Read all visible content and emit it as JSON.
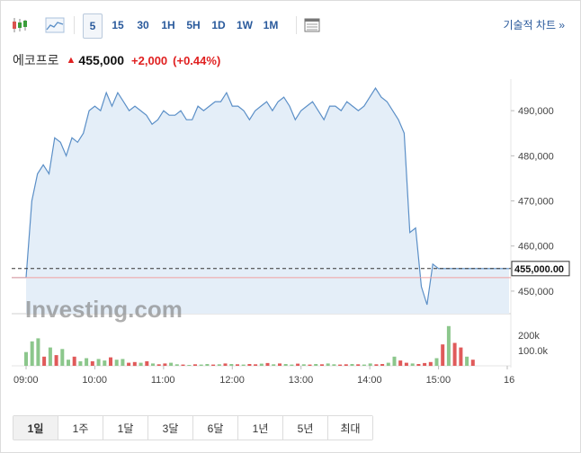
{
  "toolbar": {
    "candle_icon": "candlestick-chart-icon",
    "line_icon": "line-chart-icon",
    "intervals": [
      "5",
      "15",
      "30",
      "1H",
      "5H",
      "1D",
      "1W",
      "1M"
    ],
    "active_interval": "5",
    "table_icon": "table-icon",
    "tech_link": "기술적 차트 »"
  },
  "quote": {
    "name": "에코프로",
    "price": "455,000",
    "change": "+2,000",
    "change_pct": "(+0.44%)"
  },
  "colors": {
    "up": "#e02020",
    "line": "#5b8fc7",
    "area": "#e4eef8",
    "vol_up": "#8cc78c",
    "vol_down": "#e05a5a",
    "link": "#2a5a9c"
  },
  "watermark": "Investing.com",
  "chart_data": {
    "type": "area",
    "x_ticks": [
      "09:00",
      "10:00",
      "11:00",
      "12:00",
      "13:00",
      "14:00",
      "15:00",
      "16"
    ],
    "y_ticks": [
      "490,000",
      "480,000",
      "470,000",
      "460,000",
      "450,000"
    ],
    "current_price_label": "455,000.00",
    "ylim": [
      445000,
      497000
    ],
    "x_start": "09:00",
    "x_end": "16:00",
    "series": [
      {
        "x": [
          "09:00",
          "09:05",
          "09:10",
          "09:15",
          "09:20",
          "09:25",
          "09:30",
          "09:35",
          "09:40",
          "09:45",
          "09:50",
          "09:55",
          "10:00",
          "10:05",
          "10:10",
          "10:15",
          "10:20",
          "10:25",
          "10:30",
          "10:35",
          "10:40",
          "10:45",
          "10:50",
          "10:55",
          "11:00",
          "11:05",
          "11:10",
          "11:15",
          "11:20",
          "11:25",
          "11:30",
          "11:35",
          "11:40",
          "11:45",
          "11:50",
          "11:55",
          "12:00",
          "12:05",
          "12:10",
          "12:15",
          "12:20",
          "12:25",
          "12:30",
          "12:35",
          "12:40",
          "12:45",
          "12:50",
          "12:55",
          "13:00",
          "13:05",
          "13:10",
          "13:15",
          "13:20",
          "13:25",
          "13:30",
          "13:35",
          "13:40",
          "13:45",
          "13:50",
          "13:55",
          "14:00",
          "14:05",
          "14:10",
          "14:15",
          "14:20",
          "14:25",
          "14:30",
          "14:35",
          "14:40",
          "14:45",
          "14:50",
          "14:55",
          "15:00",
          "15:05",
          "15:10",
          "15:15",
          "15:20",
          "15:25",
          "15:30"
        ],
        "values": [
          453000,
          470000,
          476000,
          478000,
          476000,
          484000,
          483000,
          480000,
          484000,
          483000,
          485000,
          490000,
          491000,
          490000,
          494000,
          491000,
          494000,
          492000,
          490000,
          491000,
          490000,
          489000,
          487000,
          488000,
          490000,
          489000,
          489000,
          490000,
          488000,
          488000,
          491000,
          490000,
          491000,
          492000,
          492000,
          494000,
          491000,
          491000,
          490000,
          488000,
          490000,
          491000,
          492000,
          490000,
          492000,
          493000,
          491000,
          488000,
          490000,
          491000,
          492000,
          490000,
          488000,
          491000,
          491000,
          490000,
          492000,
          491000,
          490000,
          491000,
          493000,
          495000,
          493000,
          492000,
          490000,
          488000,
          485000,
          463000,
          464000,
          451000,
          447000,
          456000,
          455000,
          455000,
          455000,
          455000,
          455000,
          455000,
          455000
        ],
        "ohlc_open_marker": 453000
      }
    ],
    "volume": {
      "y_ticks": [
        "200k",
        "100.0k"
      ],
      "values": [
        90,
        160,
        180,
        60,
        120,
        70,
        110,
        40,
        60,
        30,
        50,
        30,
        45,
        35,
        55,
        40,
        45,
        20,
        25,
        20,
        30,
        15,
        10,
        15,
        20,
        10,
        8,
        6,
        10,
        8,
        12,
        8,
        10,
        15,
        12,
        10,
        8,
        12,
        10,
        14,
        18,
        10,
        15,
        12,
        8,
        14,
        10,
        8,
        12,
        10,
        15,
        10,
        8,
        10,
        12,
        10,
        8,
        15,
        10,
        12,
        20,
        60,
        35,
        20,
        15,
        12,
        18,
        25,
        50,
        140,
        260,
        150,
        120,
        60,
        40
      ],
      "colors": [
        "g",
        "g",
        "g",
        "r",
        "g",
        "r",
        "g",
        "g",
        "r",
        "g",
        "g",
        "r",
        "g",
        "g",
        "r",
        "g",
        "g",
        "r",
        "r",
        "g",
        "r",
        "g",
        "r",
        "r",
        "g",
        "g",
        "r",
        "g",
        "r",
        "g",
        "g",
        "r",
        "g",
        "r",
        "g",
        "r",
        "g",
        "r",
        "r",
        "g",
        "r",
        "g",
        "r",
        "g",
        "g",
        "r",
        "g",
        "r",
        "g",
        "r",
        "g",
        "g",
        "r",
        "r",
        "g",
        "r",
        "g",
        "g",
        "r",
        "r",
        "g",
        "g",
        "r",
        "r",
        "g",
        "r",
        "r",
        "r",
        "g",
        "r",
        "g",
        "r",
        "r",
        "g",
        "r"
      ]
    }
  },
  "periods": [
    "1일",
    "1주",
    "1달",
    "3달",
    "6달",
    "1년",
    "5년",
    "최대"
  ],
  "active_period": "1일"
}
